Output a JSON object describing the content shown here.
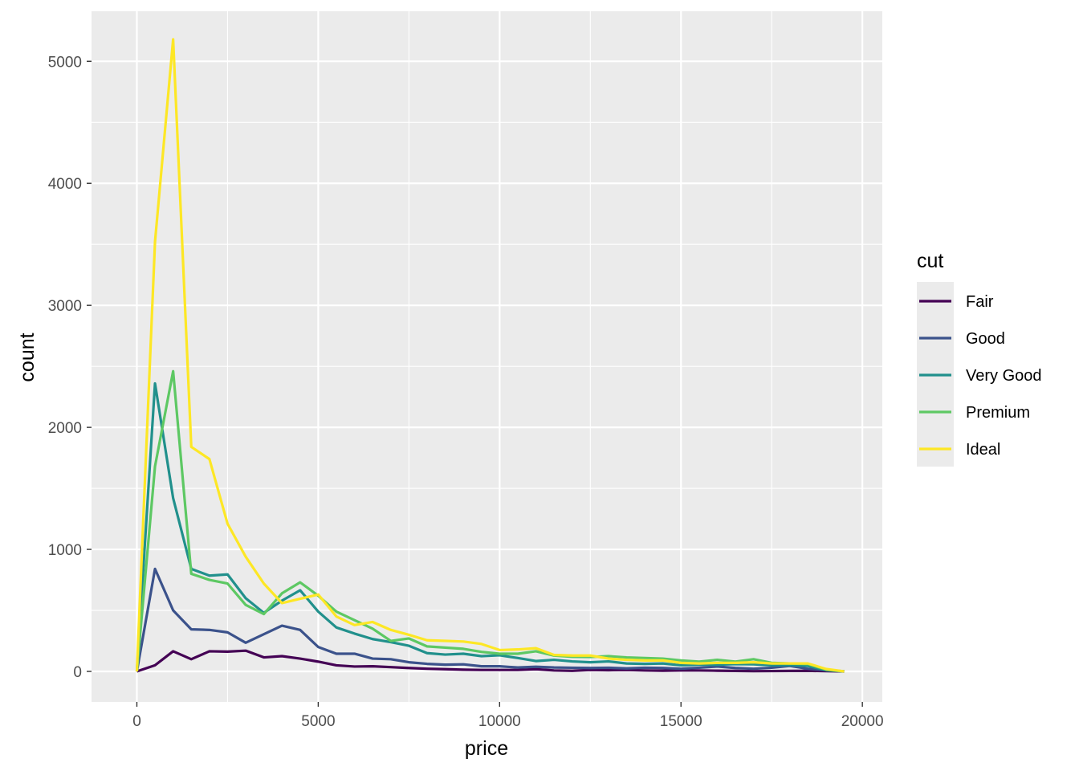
{
  "chart_data": {
    "type": "line",
    "title": "",
    "xlabel": "price",
    "ylabel": "count",
    "xlim": [
      -1250,
      20550
    ],
    "ylim": [
      -250,
      5410
    ],
    "x_ticks": [
      "0",
      "5000",
      "10000",
      "15000",
      "20000"
    ],
    "y_ticks": [
      "0",
      "1000",
      "2000",
      "3000",
      "4000",
      "5000"
    ],
    "grid": true,
    "legend": {
      "title": "cut",
      "position": "right"
    },
    "x": [
      0,
      500,
      1000,
      1500,
      2000,
      2500,
      3000,
      3500,
      4000,
      4500,
      5000,
      5500,
      6000,
      6500,
      7000,
      7500,
      8000,
      8500,
      9000,
      9500,
      10000,
      10500,
      11000,
      11500,
      12000,
      12500,
      13000,
      13500,
      14000,
      14500,
      15000,
      15500,
      16000,
      16500,
      17000,
      17500,
      18000,
      18500,
      19000,
      19500
    ],
    "series": [
      {
        "name": "Fair",
        "color": "#440154",
        "values": [
          0,
          50,
          165,
          100,
          165,
          162,
          170,
          115,
          125,
          105,
          80,
          50,
          40,
          42,
          35,
          28,
          22,
          18,
          14,
          12,
          12,
          12,
          18,
          8,
          5,
          12,
          10,
          12,
          8,
          6,
          8,
          8,
          6,
          4,
          2,
          3,
          4,
          5,
          2,
          0
        ]
      },
      {
        "name": "Good",
        "color": "#3B528B",
        "values": [
          0,
          840,
          500,
          345,
          340,
          320,
          235,
          305,
          375,
          340,
          200,
          145,
          145,
          105,
          100,
          75,
          62,
          55,
          58,
          42,
          42,
          32,
          38,
          32,
          30,
          28,
          30,
          25,
          30,
          28,
          22,
          30,
          40,
          28,
          22,
          30,
          45,
          22,
          10,
          0
        ]
      },
      {
        "name": "Very Good",
        "color": "#21908C",
        "values": [
          0,
          2360,
          1420,
          840,
          785,
          795,
          600,
          480,
          580,
          665,
          490,
          360,
          310,
          265,
          240,
          210,
          150,
          138,
          145,
          125,
          132,
          110,
          85,
          95,
          82,
          75,
          82,
          65,
          62,
          65,
          50,
          55,
          55,
          60,
          58,
          50,
          52,
          45,
          10,
          0
        ]
      },
      {
        "name": "Premium",
        "color": "#5DC863",
        "values": [
          0,
          1680,
          2460,
          800,
          750,
          720,
          545,
          470,
          640,
          730,
          620,
          490,
          420,
          350,
          250,
          270,
          205,
          195,
          185,
          160,
          145,
          145,
          165,
          130,
          120,
          118,
          125,
          115,
          110,
          105,
          90,
          80,
          95,
          80,
          100,
          70,
          65,
          60,
          15,
          0
        ]
      },
      {
        "name": "Ideal",
        "color": "#FDE725",
        "values": [
          0,
          3520,
          5180,
          1840,
          1740,
          1210,
          940,
          720,
          560,
          595,
          630,
          450,
          380,
          405,
          340,
          300,
          255,
          250,
          245,
          225,
          175,
          180,
          190,
          135,
          130,
          130,
          105,
          95,
          90,
          90,
          70,
          65,
          70,
          70,
          75,
          65,
          65,
          65,
          20,
          0
        ]
      }
    ]
  }
}
